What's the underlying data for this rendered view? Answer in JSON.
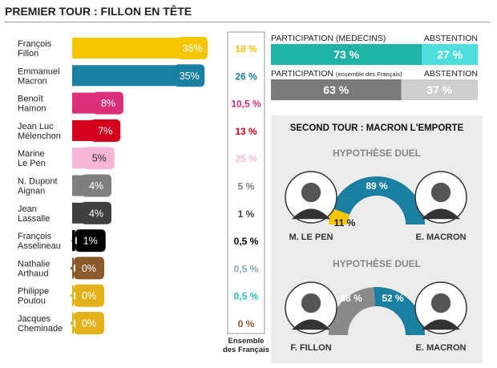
{
  "title": "PREMIER TOUR : FILLON EN TÊTE",
  "first_round_column_label": [
    "Ensemble",
    "des Français"
  ],
  "participation": [
    {
      "left_label": "PARTICIPATION (MÉDECINS)",
      "left_small": "",
      "right_label": "ABSTENTION",
      "participation": 73,
      "abstention": 27,
      "participation_text": "73 %",
      "abstention_text": "27 %",
      "participation_color": "#1fb3a6",
      "abstention_color": "#4fdede"
    },
    {
      "left_label": "PARTICIPATION",
      "left_small": "(ensemble des Français)",
      "right_label": "ABSTENTION",
      "participation": 63,
      "abstention": 37,
      "participation_text": "63 %",
      "abstention_text": "37 %",
      "participation_color": "#7a7a7a",
      "abstention_color": "#cfcfcf"
    }
  ],
  "second_round": {
    "title": "SECOND TOUR : MACRON L'EMPORTE",
    "duels": [
      {
        "heading": "HYPOTHÈSE DUEL",
        "left_name": "M. LE PEN",
        "right_name": "E. MACRON",
        "left_value": 11,
        "right_value": 89,
        "left_text": "11 %",
        "right_text": "89 %",
        "left_color": "#f6c600",
        "right_color": "#1a7fa0",
        "left_avatar": "portrait-icon",
        "right_avatar": "portrait-icon"
      },
      {
        "heading": "HYPOTHÈSE DUEL",
        "left_name": "F. FILLON",
        "right_name": "E. MACRON",
        "left_value": 48,
        "right_value": 52,
        "left_text": "48 %",
        "right_text": "52 %",
        "left_color": "#8a8a8a",
        "right_color": "#1a7fa0",
        "left_avatar": "portrait-icon",
        "right_avatar": "portrait-icon"
      }
    ]
  },
  "chart_data": {
    "type": "bar",
    "title": "PREMIER TOUR : FILLON EN TÊTE",
    "categories": [
      "François Fillon",
      "Emmanuel Macron",
      "Benoît Hamon",
      "Jean Luc Mélenchon",
      "Marine Le Pen",
      "N. Dupont Aignan",
      "Jean Lassalle",
      "François Asselineau",
      "Nathalie Arthaud",
      "Philippe Poutou",
      "Jacques Cheminade"
    ],
    "series": [
      {
        "values": [
          36,
          35,
          8,
          7,
          5,
          4,
          4,
          1,
          0,
          0,
          0
        ]
      },
      {
        "name": "Ensemble des Français",
        "values": [
          18,
          26,
          10.5,
          13,
          25,
          5,
          1,
          0.5,
          0.5,
          0.5,
          0
        ]
      }
    ],
    "candidates": [
      {
        "name_lines": [
          "François",
          "Fillon"
        ],
        "value": 36,
        "label": "36%",
        "ensemble": "18 %",
        "color": "#f6c600",
        "label_color": "#ffffff"
      },
      {
        "name_lines": [
          "Emmanuel",
          "Macron"
        ],
        "value": 35,
        "label": "35%",
        "ensemble": "26 %",
        "color": "#1a7fa0",
        "label_color": "#ffffff"
      },
      {
        "name_lines": [
          "Benoît",
          "Hamon"
        ],
        "value": 8,
        "label": "8%",
        "ensemble": "10,5 %",
        "color": "#dc2f7a",
        "label_color": "#ffffff"
      },
      {
        "name_lines": [
          "Jean Luc",
          "Mélenchon"
        ],
        "value": 7,
        "label": "7%",
        "ensemble": "13 %",
        "color": "#d4001e",
        "label_color": "#ffffff"
      },
      {
        "name_lines": [
          "Marine",
          "Le Pen"
        ],
        "value": 5,
        "label": "5%",
        "ensemble": "25 %",
        "color": "#f7b6d4",
        "label_color": "#333333"
      },
      {
        "name_lines": [
          "N. Dupont",
          "Aignan"
        ],
        "value": 4,
        "label": "4%",
        "ensemble": "5 %",
        "color": "#7f7f7f",
        "label_color": "#ffffff"
      },
      {
        "name_lines": [
          "Jean",
          "Lassalle"
        ],
        "value": 4,
        "label": "4%",
        "ensemble": "1 %",
        "color": "#404040",
        "label_color": "#ffffff"
      },
      {
        "name_lines": [
          "François",
          "Asselineau"
        ],
        "value": 1,
        "label": "1%",
        "ensemble": "0,5 %",
        "color": "#000000",
        "label_color": "#ffffff"
      },
      {
        "name_lines": [
          "Nathalie",
          "Arthaud"
        ],
        "value": 0,
        "label": "0%",
        "ensemble": "0,5 %",
        "color": "#8b5a2b",
        "label_color": "#ffffff"
      },
      {
        "name_lines": [
          "Philippe",
          "Poutou"
        ],
        "value": 0,
        "label": "0%",
        "ensemble": "0,5 %",
        "color": "#e3b21b",
        "label_color": "#ffffff"
      },
      {
        "name_lines": [
          "Jacques",
          "Cheminade"
        ],
        "value": 0,
        "label": "0%",
        "ensemble": "0 %",
        "color": "#e3b21b",
        "label_color": "#ffffff"
      }
    ],
    "ensemble_colors": [
      "#f6c600",
      "#1a7fa0",
      "#dc2f7a",
      "#d4001e",
      "#f7b6d4",
      "#7f7f7f",
      "#404040",
      "#000000",
      "#8aa7b5",
      "#2bbfc0",
      "#8b5a2b"
    ],
    "ylim": [
      0,
      40
    ]
  }
}
